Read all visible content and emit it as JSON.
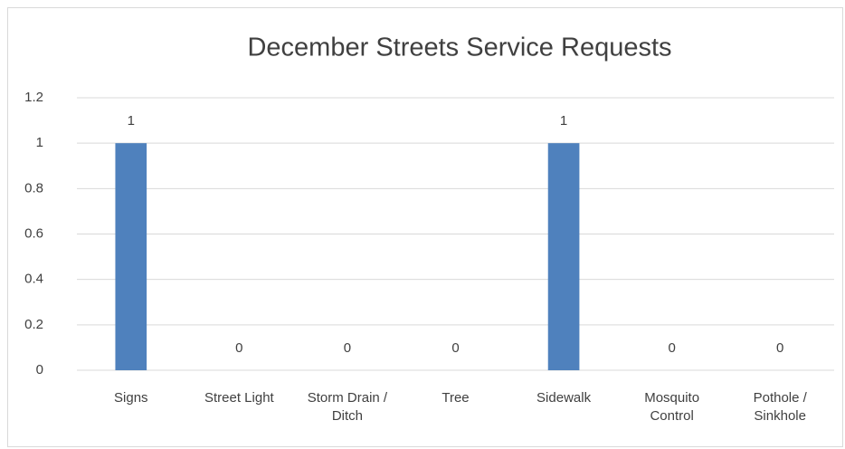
{
  "chart_data": {
    "type": "bar",
    "title": "December Streets Service Requests",
    "categories": [
      "Signs",
      "Street Light",
      "Storm Drain / Ditch",
      "Tree",
      "Sidewalk",
      "Mosquito Control",
      "Pothole / Sinkhole"
    ],
    "values": [
      1,
      0,
      0,
      0,
      1,
      0,
      0
    ],
    "color": "#4f81bd",
    "ylim": [
      0,
      1.2
    ],
    "yticks": [
      0,
      0.2,
      0.4,
      0.6,
      0.8,
      1,
      1.2
    ],
    "grid": true
  }
}
